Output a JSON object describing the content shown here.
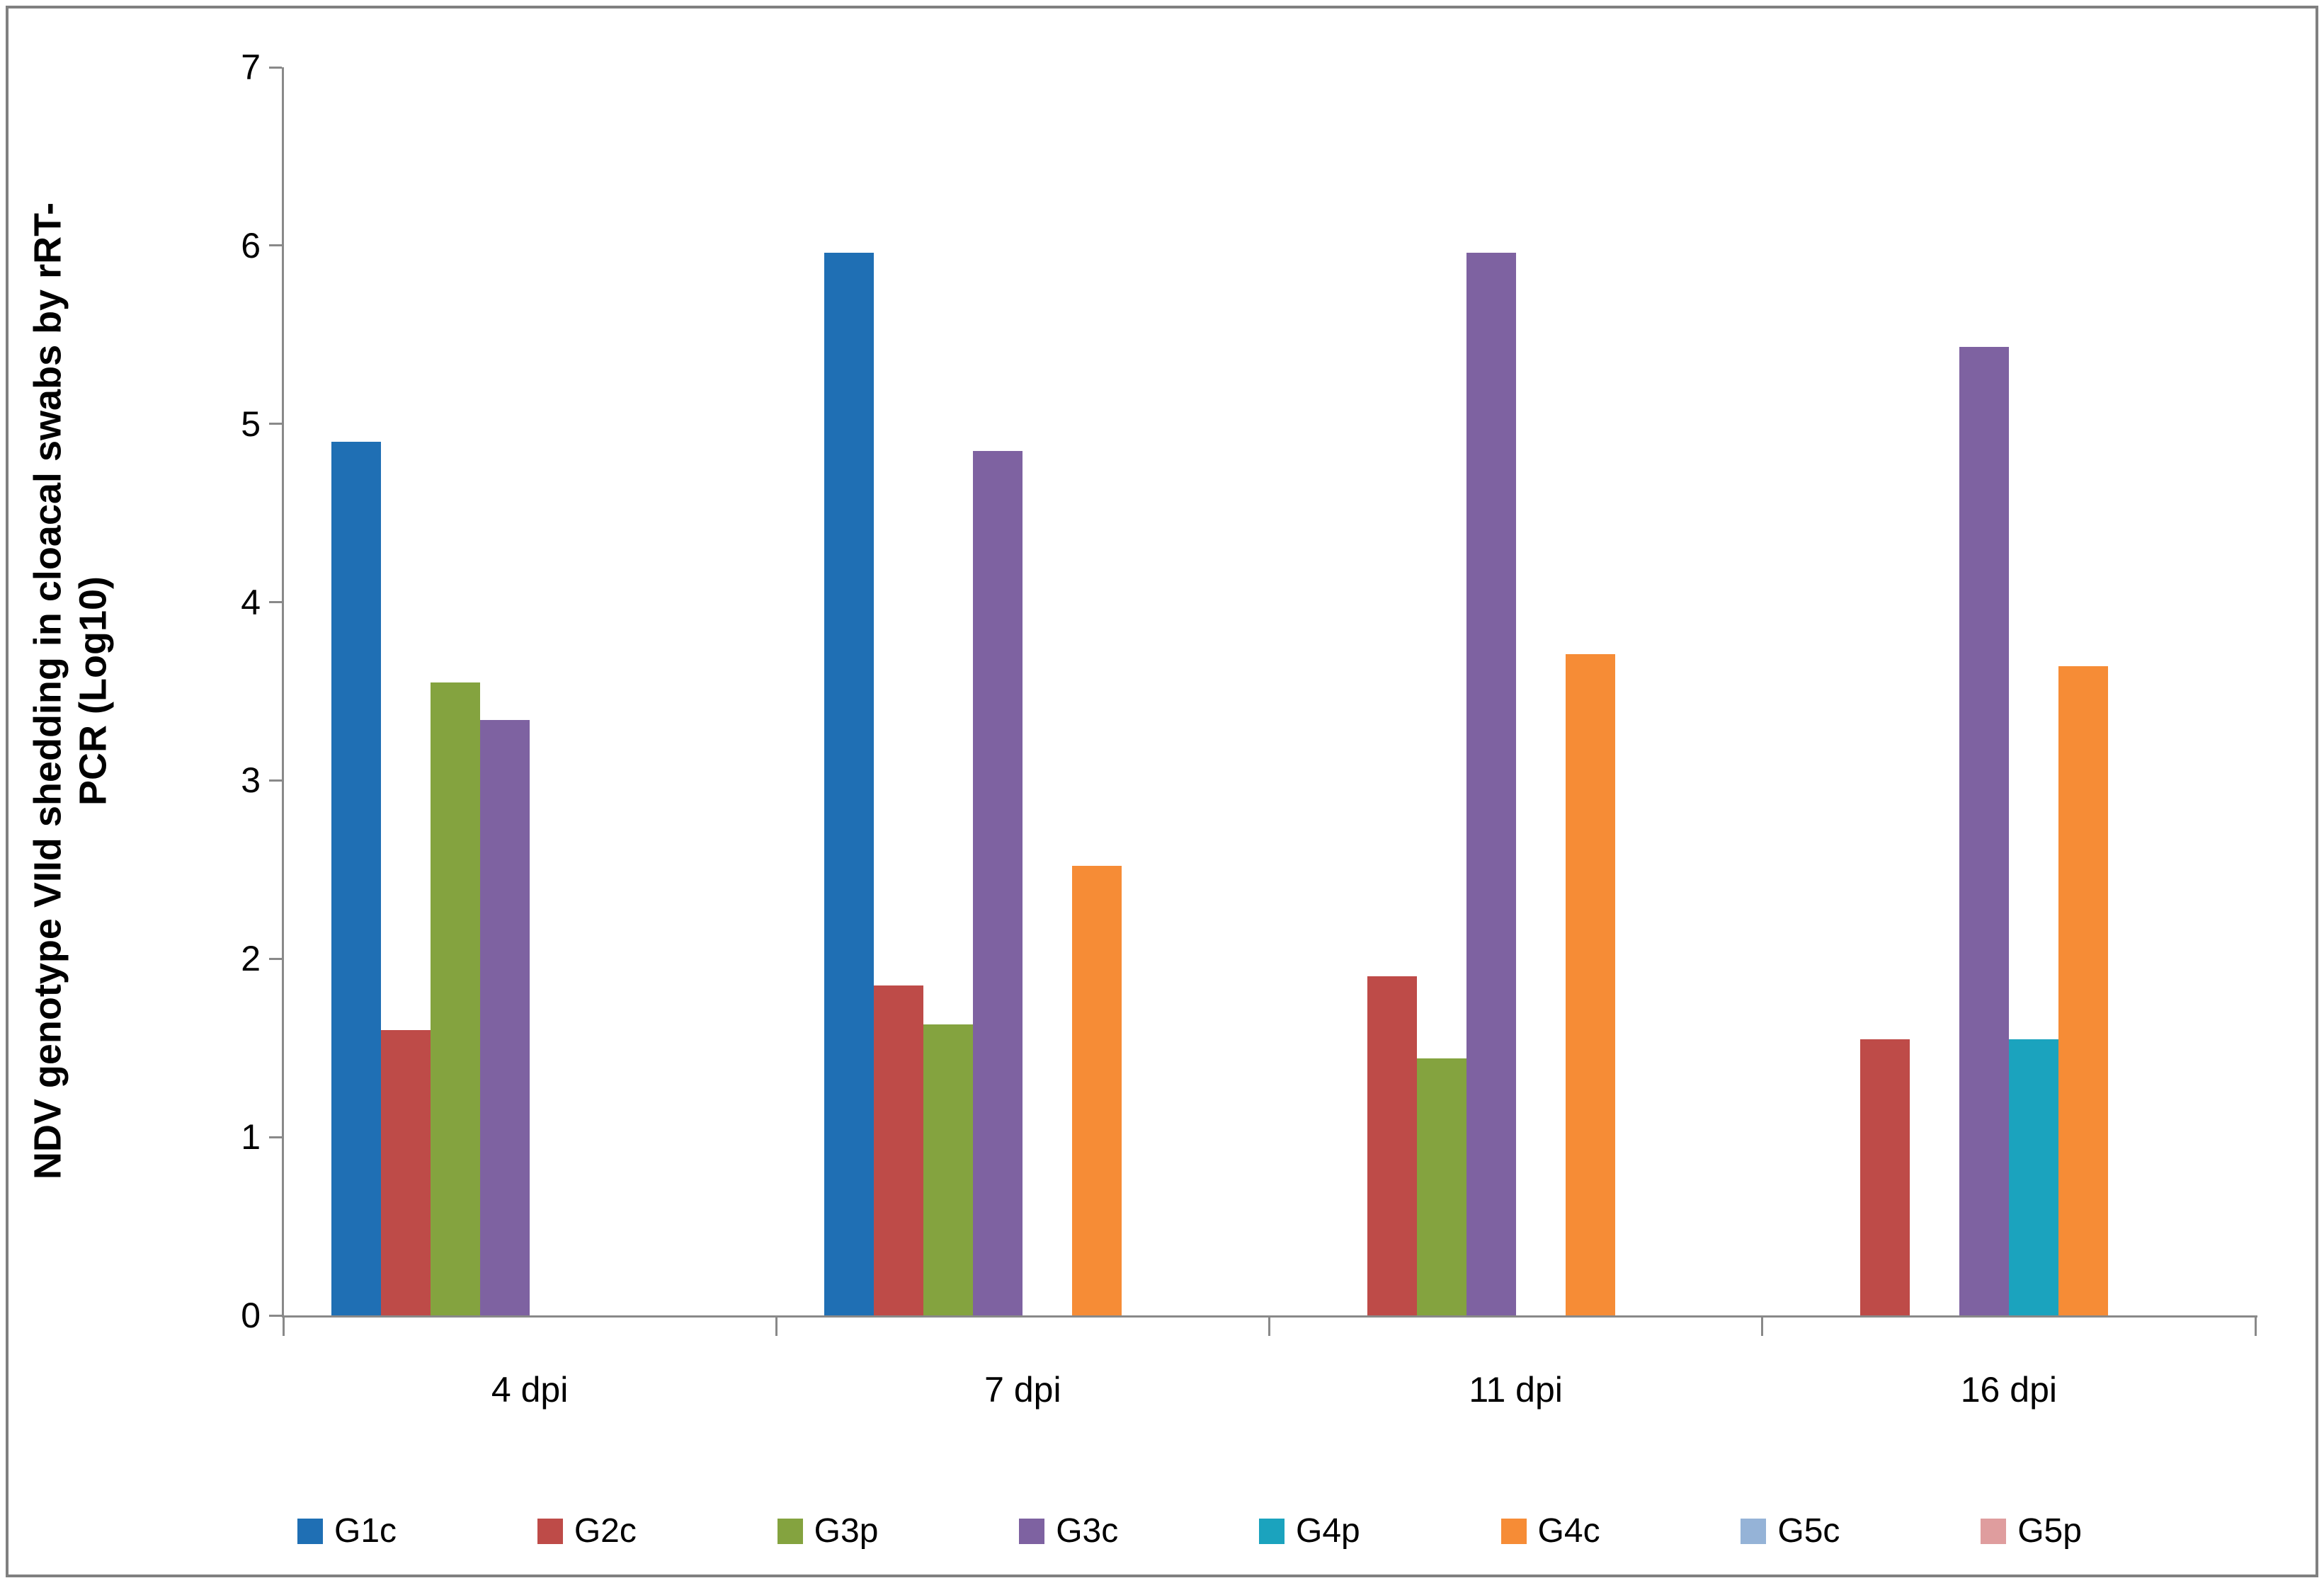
{
  "figure": {
    "background": "#FFFFFF",
    "border_color": "#808080",
    "axis_color": "#898989",
    "text_color": "#000000"
  },
  "chart_data": {
    "type": "bar",
    "title": "",
    "xlabel": "",
    "ylabel": "NDV genotype VIId shedding in cloacal swabs by rRT-PCR (Log10)",
    "ylabel_lines": [
      "NDV genotype VIId shedding in cloacal swabs by rRT-",
      "PCR (Log10)"
    ],
    "ylim": [
      0,
      7
    ],
    "yticks": [
      0,
      1,
      2,
      3,
      4,
      5,
      6,
      7
    ],
    "grid": false,
    "legend_position": "bottom",
    "categories": [
      "4 dpi",
      "7 dpi",
      "11 dpi",
      "16 dpi"
    ],
    "series": [
      {
        "name": "G1c",
        "color": "#1F6FB4",
        "values": [
          4.9,
          5.96,
          0,
          0
        ]
      },
      {
        "name": "G2c",
        "color": "#BE4B48",
        "values": [
          1.6,
          1.85,
          1.9,
          1.55
        ]
      },
      {
        "name": "G3p",
        "color": "#84A33F",
        "values": [
          3.55,
          1.63,
          1.44,
          0
        ]
      },
      {
        "name": "G3c",
        "color": "#7E62A1",
        "values": [
          3.34,
          4.85,
          5.96,
          5.43
        ]
      },
      {
        "name": "G4p",
        "color": "#1BA3BE",
        "values": [
          0,
          0,
          0,
          1.55
        ]
      },
      {
        "name": "G4c",
        "color": "#F68C36",
        "values": [
          0,
          2.52,
          3.71,
          3.64
        ]
      },
      {
        "name": "G5c",
        "color": "#95B3D7",
        "values": [
          0,
          0,
          0,
          0
        ]
      },
      {
        "name": "G5p",
        "color": "#DF9D9E",
        "values": [
          0,
          0,
          0,
          0
        ]
      }
    ]
  }
}
